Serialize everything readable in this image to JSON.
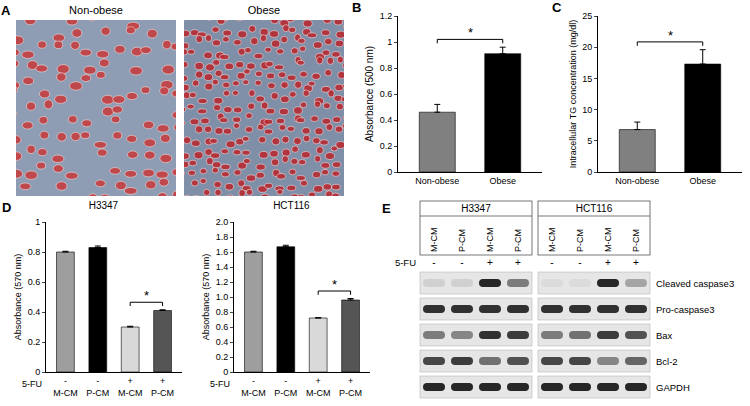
{
  "figure_a": {
    "panel": "A",
    "images": [
      {
        "label": "Non-obese"
      },
      {
        "label": "Obese"
      }
    ]
  },
  "chart_data": [
    {
      "panel": "B",
      "type": "bar",
      "categories": [
        "Non-obese",
        "Obese"
      ],
      "values": [
        0.46,
        0.91
      ],
      "error": [
        0.06,
        0.05
      ],
      "colors": [
        "#808080",
        "#000000"
      ],
      "y_label": "Absorbance (500 nm)",
      "ylim": [
        0,
        1.2
      ],
      "yticks": [
        0,
        0.2,
        0.4,
        0.6,
        0.8,
        1,
        1.2
      ],
      "grid": false,
      "significance": [
        {
          "pair": [
            0,
            1
          ],
          "label": "*"
        }
      ]
    },
    {
      "panel": "C",
      "type": "bar",
      "categories": [
        "Non-obese",
        "Obese"
      ],
      "values": [
        6.8,
        17.3
      ],
      "error": [
        1.2,
        2.3
      ],
      "colors": [
        "#808080",
        "#000000"
      ],
      "y_label": "Intracellular TG concentration (mg/dl)",
      "ylim": [
        0,
        25
      ],
      "yticks": [
        0,
        5,
        10,
        15,
        20,
        25
      ],
      "grid": false,
      "significance": [
        {
          "pair": [
            0,
            1
          ],
          "label": "*"
        }
      ]
    },
    {
      "panel": "D",
      "type": "bar",
      "title": "H3347",
      "categories": [
        "M-CM",
        "P-CM",
        "M-CM",
        "P-CM"
      ],
      "values": [
        0.8,
        0.83,
        0.3,
        0.41
      ],
      "error": [
        0.005,
        0.01,
        0.005,
        0.005
      ],
      "colors": [
        "#9e9e9e",
        "#000000",
        "#d9d9d9",
        "#555555"
      ],
      "y_label": "Absorbance (570 nm)",
      "ylim": [
        0,
        1
      ],
      "yticks": [
        0,
        0.2,
        0.4,
        0.6,
        0.8,
        1
      ],
      "grid": false,
      "treatment": {
        "label": "5-FU",
        "values": [
          "-",
          "-",
          "+",
          "+"
        ]
      },
      "significance": [
        {
          "pair": [
            2,
            3
          ],
          "label": "*"
        }
      ]
    },
    {
      "type": "bar",
      "title": "HCT116",
      "categories": [
        "M-CM",
        "P-CM",
        "M-CM",
        "P-CM"
      ],
      "values": [
        1.6,
        1.67,
        0.72,
        0.96
      ],
      "error": [
        0.01,
        0.02,
        0.005,
        0.02
      ],
      "colors": [
        "#9e9e9e",
        "#000000",
        "#d9d9d9",
        "#555555"
      ],
      "y_label": "Absorbance (570 nm)",
      "ylim": [
        0,
        2
      ],
      "yticks": [
        0,
        0.2,
        0.4,
        0.6,
        0.8,
        {
          "value": 1,
          "label": "1.0"
        },
        1.2,
        1.4,
        1.6,
        1.8,
        {
          "value": 2,
          "label": "2.0"
        }
      ],
      "grid": false,
      "treatment": {
        "label": "5-FU",
        "values": [
          "-",
          "-",
          "+",
          "+"
        ]
      },
      "significance": [
        {
          "pair": [
            2,
            3
          ],
          "label": "*"
        }
      ]
    }
  ],
  "figure_e": {
    "panel": "E",
    "groups": [
      {
        "label": "H3347",
        "lanes": [
          "M-CM",
          "P-CM",
          "M-CM",
          "P-CM"
        ]
      },
      {
        "label": "HCT116",
        "lanes": [
          "M-CM",
          "P-CM",
          "M-CM",
          "P-CM"
        ]
      }
    ],
    "treatment": {
      "label": "5-FU",
      "values": [
        "-",
        "-",
        "+",
        "+",
        "-",
        "-",
        "+",
        "+"
      ]
    },
    "bands": [
      {
        "label": "Cleaved caspase3",
        "intensity": [
          0.1,
          0.1,
          0.9,
          0.5,
          0.05,
          0.05,
          0.9,
          0.3
        ]
      },
      {
        "label": "Pro-caspase3",
        "intensity": [
          0.85,
          0.85,
          0.85,
          0.85,
          0.85,
          0.85,
          0.85,
          0.85
        ]
      },
      {
        "label": "Bax",
        "intensity": [
          0.5,
          0.45,
          0.85,
          0.8,
          0.5,
          0.55,
          0.8,
          0.7
        ]
      },
      {
        "label": "Bcl-2",
        "intensity": [
          0.75,
          0.8,
          0.55,
          0.7,
          0.75,
          0.75,
          0.45,
          0.6
        ]
      },
      {
        "label": "GAPDH",
        "intensity": [
          0.9,
          0.9,
          0.9,
          0.9,
          0.9,
          0.9,
          0.9,
          0.9
        ]
      }
    ]
  }
}
